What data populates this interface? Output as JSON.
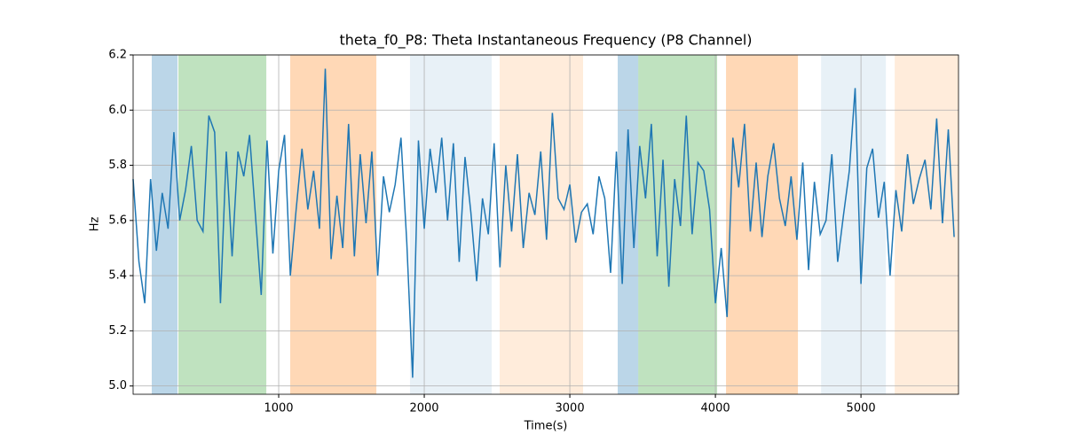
{
  "chart_data": {
    "type": "line",
    "title": "theta_f0_P8: Theta Instantaneous Frequency (P8 Channel)",
    "x_label": "Time(s)",
    "y_label": "Hz",
    "xlim": [
      0,
      5670
    ],
    "ylim": [
      4.97,
      6.2
    ],
    "xticks": [
      1000,
      2000,
      3000,
      4000,
      5000
    ],
    "yticks": [
      {
        "value": 5,
        "label": "5.0"
      },
      5.2,
      5.4,
      5.6,
      5.8,
      {
        "value": 6,
        "label": "6.0"
      },
      6.2
    ],
    "grid": true,
    "spans": [
      {
        "x": [
          128,
          305
        ],
        "color": "rgba(31,119,180,0.3)"
      },
      {
        "x": [
          311,
          915
        ],
        "color": "rgba(44,160,44,0.3)"
      },
      {
        "x": [
          1079,
          1671
        ],
        "color": "rgba(255,127,14,0.3)"
      },
      {
        "x": [
          1902,
          2463
        ],
        "color": "rgba(31,119,180,0.1)"
      },
      {
        "x": [
          2518,
          3091
        ],
        "color": "rgba(255,127,14,0.15)"
      },
      {
        "x": [
          3329,
          3470
        ],
        "color": "rgba(31,119,180,0.3)"
      },
      {
        "x": [
          3470,
          4012
        ],
        "color": "rgba(44,160,44,0.3)"
      },
      {
        "x": [
          4073,
          4567
        ],
        "color": "rgba(255,127,14,0.3)"
      },
      {
        "x": [
          4726,
          5171
        ],
        "color": "rgba(31,119,180,0.1)"
      },
      {
        "x": [
          5232,
          5670
        ],
        "color": "rgba(255,127,14,0.15)"
      }
    ],
    "x": [
      0,
      40,
      80,
      120,
      160,
      200,
      240,
      280,
      320,
      360,
      400,
      440,
      480,
      520,
      560,
      600,
      640,
      680,
      720,
      760,
      800,
      840,
      880,
      920,
      960,
      1000,
      1040,
      1080,
      1120,
      1160,
      1200,
      1240,
      1280,
      1320,
      1360,
      1400,
      1440,
      1480,
      1520,
      1560,
      1600,
      1640,
      1680,
      1720,
      1760,
      1800,
      1840,
      1880,
      1920,
      1960,
      2000,
      2040,
      2080,
      2120,
      2160,
      2200,
      2240,
      2280,
      2320,
      2360,
      2400,
      2440,
      2480,
      2520,
      2560,
      2600,
      2640,
      2680,
      2720,
      2760,
      2800,
      2840,
      2880,
      2920,
      2960,
      3000,
      3040,
      3080,
      3120,
      3160,
      3200,
      3240,
      3280,
      3320,
      3360,
      3400,
      3440,
      3480,
      3520,
      3560,
      3600,
      3640,
      3680,
      3720,
      3760,
      3800,
      3840,
      3880,
      3920,
      3960,
      4000,
      4040,
      4080,
      4120,
      4160,
      4200,
      4240,
      4280,
      4320,
      4360,
      4400,
      4440,
      4480,
      4520,
      4560,
      4600,
      4640,
      4680,
      4720,
      4760,
      4800,
      4840,
      4880,
      4920,
      4960,
      5000,
      5040,
      5080,
      5120,
      5160,
      5200,
      5240,
      5280,
      5320,
      5360,
      5400,
      5440,
      5480,
      5520,
      5560,
      5600,
      5640
    ],
    "series": [
      {
        "color": "#1f77b4",
        "values": [
          5.75,
          5.45,
          5.3,
          5.75,
          5.49,
          5.7,
          5.57,
          5.92,
          5.6,
          5.71,
          5.87,
          5.6,
          5.56,
          5.98,
          5.92,
          5.3,
          5.85,
          5.47,
          5.85,
          5.76,
          5.91,
          5.62,
          5.33,
          5.89,
          5.48,
          5.78,
          5.91,
          5.4,
          5.64,
          5.86,
          5.64,
          5.78,
          5.57,
          6.15,
          5.46,
          5.69,
          5.5,
          5.95,
          5.47,
          5.84,
          5.59,
          5.85,
          5.4,
          5.76,
          5.63,
          5.73,
          5.9,
          5.52,
          5.03,
          5.89,
          5.57,
          5.86,
          5.7,
          5.9,
          5.6,
          5.88,
          5.45,
          5.83,
          5.63,
          5.38,
          5.68,
          5.55,
          5.88,
          5.43,
          5.8,
          5.56,
          5.84,
          5.5,
          5.7,
          5.62,
          5.85,
          5.53,
          5.99,
          5.68,
          5.64,
          5.73,
          5.52,
          5.63,
          5.66,
          5.55,
          5.76,
          5.68,
          5.41,
          5.85,
          5.37,
          5.93,
          5.5,
          5.87,
          5.68,
          5.95,
          5.47,
          5.82,
          5.36,
          5.75,
          5.58,
          5.98,
          5.55,
          5.81,
          5.78,
          5.64,
          5.3,
          5.5,
          5.25,
          5.9,
          5.72,
          5.95,
          5.56,
          5.81,
          5.54,
          5.76,
          5.88,
          5.68,
          5.58,
          5.76,
          5.53,
          5.81,
          5.42,
          5.74,
          5.55,
          5.6,
          5.84,
          5.45,
          5.62,
          5.78,
          6.08,
          5.37,
          5.79,
          5.86,
          5.61,
          5.74,
          5.4,
          5.71,
          5.56,
          5.84,
          5.66,
          5.75,
          5.82,
          5.64,
          5.97,
          5.59,
          5.93,
          5.54
        ]
      }
    ]
  }
}
